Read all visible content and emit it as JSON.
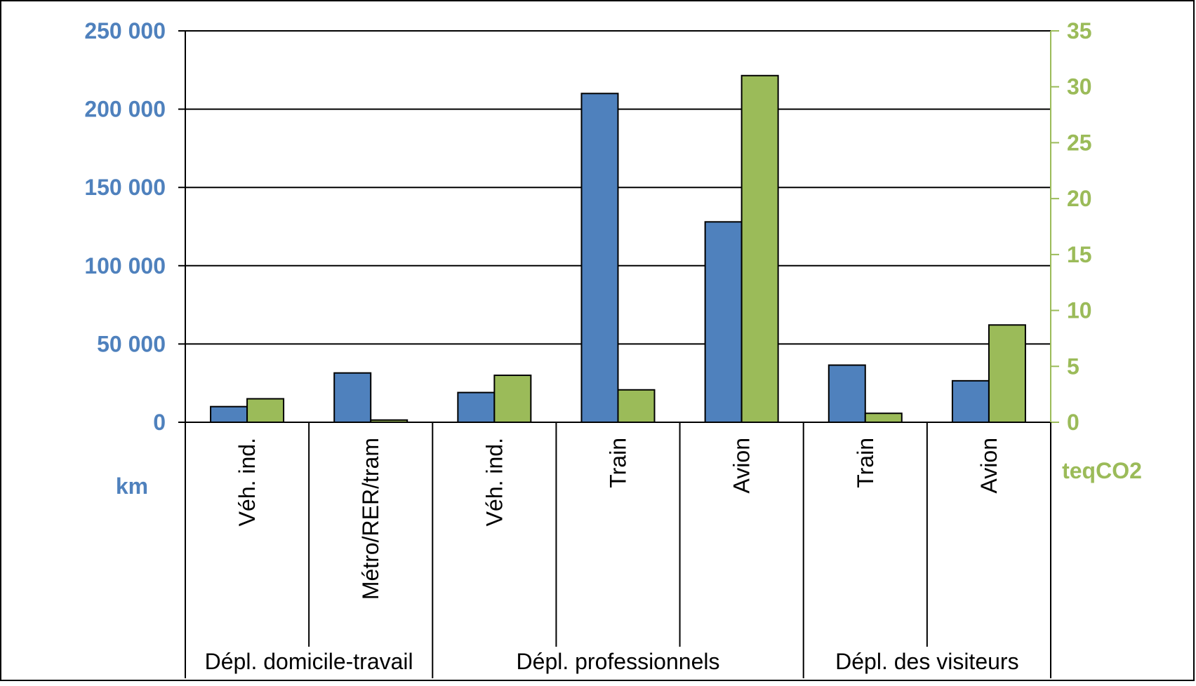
{
  "chart_data": {
    "type": "bar",
    "title": "",
    "groups": [
      {
        "label": "Dépl. domicile-travail",
        "categories": [
          "Véh. ind.",
          "Métro/RER/tram"
        ]
      },
      {
        "label": "Dépl. professionnels",
        "categories": [
          "Véh. ind.",
          "Train",
          "Avion"
        ]
      },
      {
        "label": "Dépl. des visiteurs",
        "categories": [
          "Train",
          "Avion"
        ]
      }
    ],
    "categories": [
      "Véh. ind.",
      "Métro/RER/tram",
      "Véh. ind.",
      "Train",
      "Avion",
      "Train",
      "Avion"
    ],
    "series": [
      {
        "axis": "left",
        "color": "#4f81bd",
        "values": [
          10000,
          31500,
          19000,
          210000,
          128000,
          36500,
          26500
        ]
      },
      {
        "axis": "right",
        "color": "#9bbb59",
        "values": [
          2.1,
          0.2,
          4.2,
          2.9,
          31.0,
          0.8,
          8.7
        ]
      }
    ],
    "left_axis": {
      "label": "km",
      "min": 0,
      "max": 250000,
      "ticks": [
        0,
        50000,
        100000,
        150000,
        200000,
        250000
      ],
      "tick_labels": [
        "0",
        "50 000",
        "100 000",
        "150 000",
        "200 000",
        "250 000"
      ],
      "color": "#4f81bd"
    },
    "right_axis": {
      "label": "teqCO2",
      "min": 0,
      "max": 35,
      "ticks": [
        0,
        5,
        10,
        15,
        20,
        25,
        30,
        35
      ],
      "tick_labels": [
        "0",
        "5",
        "10",
        "15",
        "20",
        "25",
        "30",
        "35"
      ],
      "color": "#9bbb59"
    },
    "grid": true,
    "legend": "none"
  }
}
